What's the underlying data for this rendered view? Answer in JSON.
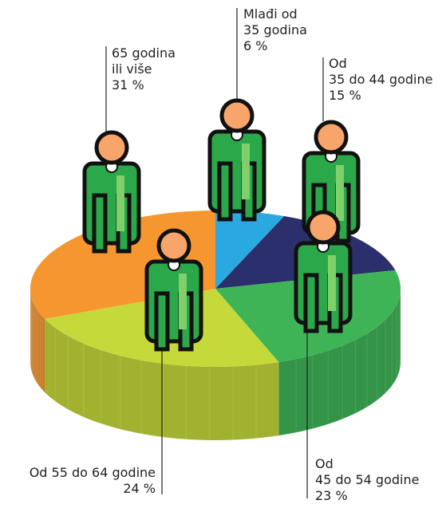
{
  "chart_data": {
    "type": "pie3d",
    "categories": [
      "Mlađi od\n35 godina",
      "Od\n35 do 44 godine",
      "Od\n45 do 54 godine",
      "Od 55 do 64 godine",
      "65 godina\nili više"
    ],
    "values": [
      6,
      15,
      23,
      24,
      31
    ],
    "value_labels": [
      "6 %",
      "15 %",
      "23 %",
      "24 %",
      "31 %"
    ],
    "colors": [
      "#2aa9e0",
      "#2b2f6c",
      "#3fb457",
      "#c6d93b",
      "#f6962f"
    ]
  }
}
